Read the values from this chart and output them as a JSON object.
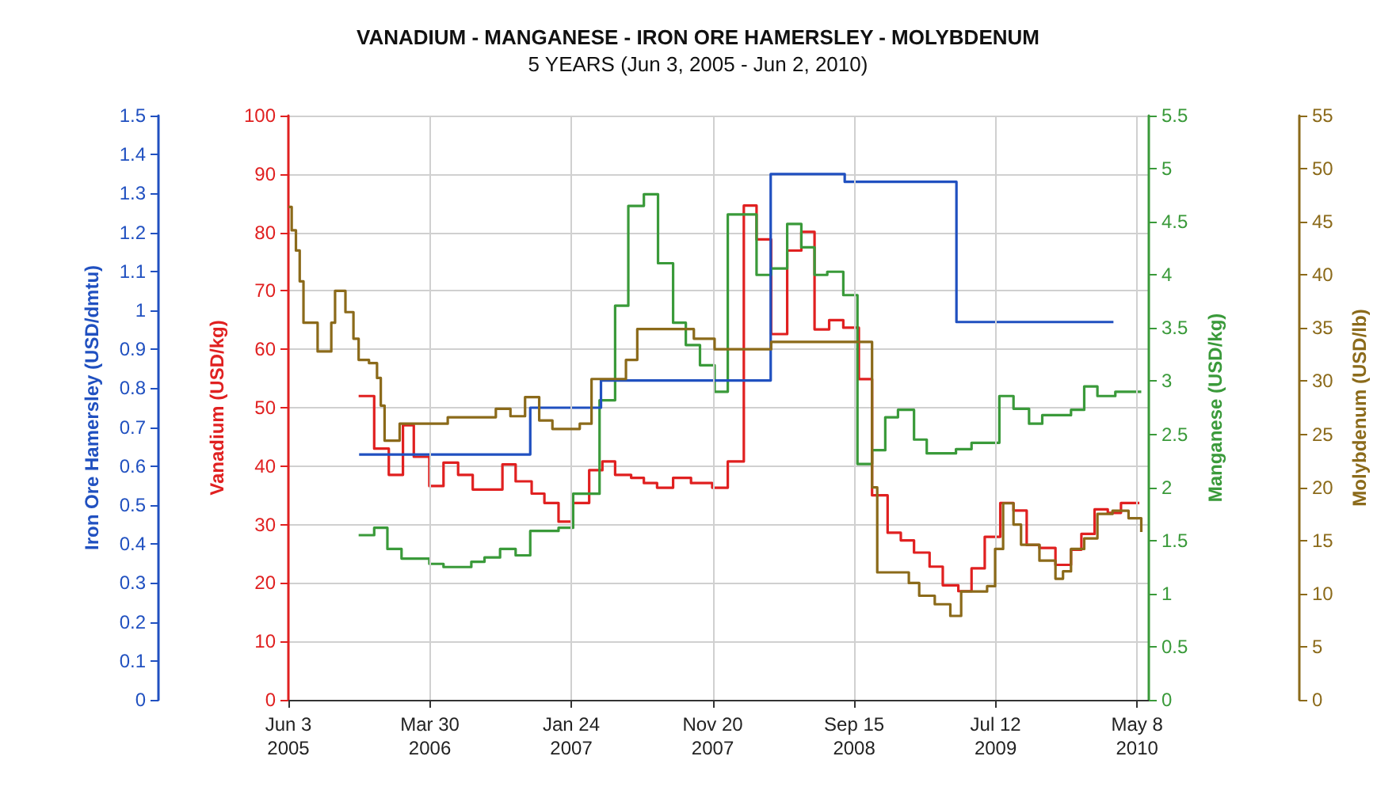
{
  "chart_data": [
    {
      "type": "step",
      "title": "VANADIUM - MANGANESE - IRON ORE HAMERSLEY - MOLYBDENUM",
      "subtitle": "5 YEARS (Jun 3, 2005 - Jun 2, 2010)",
      "ylabel": "Vanadium (USD/kg)",
      "y2label": "Manganese (USD/kg)",
      "y3label": "Iron Ore Hamersley (USD/dmtu)",
      "xlim": [
        "2005-06-03",
        "2010-06-02"
      ],
      "xticks": [
        {
          "value": "2005-06-03",
          "label": "Jun 3\n2005"
        },
        {
          "value": "2006-03-30",
          "label": "Mar 30\n2006"
        },
        {
          "value": "2007-01-24",
          "label": "Jan 24\n2007"
        },
        {
          "value": "2007-11-20",
          "label": "Nov 20\n2007"
        },
        {
          "value": "2008-09-15",
          "label": "Sep 15\n2008"
        },
        {
          "value": "2009-07-12",
          "label": "Jul 12\n2009"
        },
        {
          "value": "2010-05-08",
          "label": "May 8\n2010"
        }
      ],
      "ylim": [
        0,
        100
      ],
      "yticks": [
        0,
        10,
        20,
        30,
        40,
        50,
        60,
        70,
        80,
        90,
        100
      ],
      "y2lim": [
        0,
        5.5
      ],
      "y2ticks": [
        0,
        0.5,
        1,
        1.5,
        2,
        2.5,
        3,
        3.5,
        4,
        4.5,
        5,
        5.5
      ],
      "y3lim": [
        0,
        1.5
      ],
      "y3ticks": [
        0,
        0.1,
        0.2,
        0.3,
        0.4,
        0.5,
        0.6,
        0.7,
        0.8,
        0.9,
        1,
        1.1,
        1.2,
        1.3,
        1.4,
        1.5
      ],
      "grid": true,
      "series": [
        {
          "color": "#e02020",
          "axis": "y",
          "x": [
            "2005-10-30",
            "2005-12-02",
            "2006-01-02",
            "2006-02-01",
            "2006-02-24",
            "2006-03-29",
            "2006-04-28",
            "2006-05-29",
            "2006-06-29",
            "2006-08-31",
            "2006-09-28",
            "2006-11-01",
            "2006-11-28",
            "2006-12-28",
            "2007-01-28",
            "2007-03-03",
            "2007-03-31",
            "2007-04-27",
            "2007-05-31",
            "2007-06-27",
            "2007-07-25",
            "2007-08-28",
            "2007-10-05",
            "2007-11-19",
            "2007-12-22",
            "2008-01-25",
            "2008-02-21",
            "2008-03-23",
            "2008-04-26",
            "2008-05-26",
            "2008-06-23",
            "2008-07-24",
            "2008-08-23",
            "2008-09-25",
            "2008-10-23",
            "2008-11-25",
            "2008-12-23",
            "2009-01-20",
            "2009-02-22",
            "2009-03-22",
            "2009-04-24",
            "2009-05-22",
            "2009-06-19",
            "2009-07-22",
            "2009-08-19",
            "2009-09-16",
            "2009-10-13",
            "2009-11-16",
            "2009-12-19",
            "2010-01-10",
            "2010-02-07",
            "2010-03-07",
            "2010-04-04",
            "2010-05-13"
          ],
          "values": [
            52,
            43,
            38.5,
            47,
            41.6,
            36.6,
            40.6,
            38.5,
            36,
            40.3,
            37.4,
            35.3,
            33.7,
            30.5,
            33.7,
            39.3,
            40.8,
            38.5,
            38,
            37.1,
            36.3,
            38,
            37.1,
            36.3,
            40.8,
            84.6,
            78.8,
            62.6,
            76.9,
            80.1,
            63.4,
            65,
            63.7,
            54.9,
            35,
            28.6,
            27.3,
            25.2,
            22.8,
            19.6,
            18.6,
            22.5,
            27.9,
            33.7,
            32.4,
            26.5,
            26,
            23.1,
            25.7,
            28.4,
            32.6,
            32,
            33.7,
            33.7
          ]
        },
        {
          "color": "#3a9a3a",
          "axis": "y2",
          "x": [
            "2005-10-30",
            "2005-12-02",
            "2005-12-30",
            "2006-01-29",
            "2006-03-29",
            "2006-04-28",
            "2006-06-26",
            "2006-07-24",
            "2006-08-26",
            "2006-09-28",
            "2006-10-29",
            "2006-12-28",
            "2007-01-28",
            "2007-03-25",
            "2007-04-27",
            "2007-05-25",
            "2007-06-27",
            "2007-07-27",
            "2007-08-28",
            "2007-09-24",
            "2007-10-24",
            "2007-11-24",
            "2007-12-22",
            "2008-02-21",
            "2008-03-23",
            "2008-04-26",
            "2008-05-26",
            "2008-06-23",
            "2008-07-20",
            "2008-08-23",
            "2008-09-22",
            "2008-10-23",
            "2008-11-20",
            "2008-12-17",
            "2009-01-20",
            "2009-02-16",
            "2009-04-19",
            "2009-05-22",
            "2009-07-20",
            "2009-08-19",
            "2009-09-21",
            "2009-10-19",
            "2009-12-19",
            "2010-01-16",
            "2010-02-13",
            "2010-03-23",
            "2010-05-17"
          ],
          "values": [
            1.55,
            1.62,
            1.42,
            1.33,
            1.28,
            1.25,
            1.3,
            1.34,
            1.42,
            1.36,
            1.59,
            1.62,
            1.94,
            2.82,
            3.71,
            4.65,
            4.76,
            4.11,
            3.55,
            3.34,
            3.15,
            2.9,
            4.57,
            4,
            4.06,
            4.48,
            4.26,
            4,
            4.03,
            3.81,
            2.22,
            2.35,
            2.66,
            2.73,
            2.45,
            2.32,
            2.36,
            2.42,
            2.86,
            2.74,
            2.6,
            2.68,
            2.73,
            2.95,
            2.86,
            2.9,
            2.9
          ]
        },
        {
          "color": "#2050c0",
          "axis": "y3",
          "x": [
            "2005-10-31",
            "2006-10-29",
            "2007-03-28",
            "2008-03-22",
            "2008-08-26",
            "2009-04-20",
            "2010-03-19"
          ],
          "values": [
            0.63,
            0.75,
            0.82,
            1.35,
            1.33,
            0.97,
            0.97
          ]
        }
      ]
    },
    {
      "type": "step",
      "ylabel": "Molybdenum (USD/lb)",
      "xlim": [
        "2005-06-03",
        "2010-06-02"
      ],
      "ylim": [
        0,
        55
      ],
      "yticks": [
        0,
        5,
        10,
        15,
        20,
        25,
        30,
        35,
        40,
        45,
        50,
        55
      ],
      "tick_labels": "y",
      "series": [
        {
          "color": "#8b6a1a",
          "x": [
            "2005-06-03",
            "2005-06-10",
            "2005-06-19",
            "2005-06-27",
            "2005-07-05",
            "2005-08-04",
            "2005-09-02",
            "2005-09-10",
            "2005-10-02",
            "2005-10-19",
            "2005-10-30",
            "2005-11-21",
            "2005-12-08",
            "2005-12-16",
            "2005-12-24",
            "2006-01-25",
            "2006-05-07",
            "2006-08-17",
            "2006-09-17",
            "2006-10-18",
            "2006-11-17",
            "2006-12-15",
            "2007-02-11",
            "2007-03-08",
            "2007-05-20",
            "2007-06-13",
            "2007-10-11",
            "2007-11-24",
            "2008-03-23",
            "2008-10-23",
            "2008-11-03",
            "2009-01-09",
            "2009-01-31",
            "2009-03-05",
            "2009-04-07",
            "2009-04-30",
            "2009-06-24",
            "2009-07-11",
            "2009-07-28",
            "2009-08-19",
            "2009-09-04",
            "2009-10-13",
            "2009-11-16",
            "2009-12-02",
            "2009-12-19",
            "2010-01-16",
            "2010-02-13",
            "2010-03-17",
            "2010-04-20",
            "2010-05-17"
          ],
          "values": [
            46.4,
            44.2,
            42.3,
            39.4,
            35.5,
            32.8,
            35.5,
            38.5,
            36.5,
            34,
            32,
            31.7,
            30.3,
            27.7,
            24.4,
            26,
            26.6,
            27.4,
            26.7,
            28.5,
            26.3,
            25.5,
            26,
            30.2,
            32,
            34.9,
            34,
            33,
            33.7,
            20,
            12,
            11,
            9.8,
            9,
            7.9,
            10.2,
            10.7,
            14.2,
            18.5,
            16.5,
            14.6,
            13.1,
            11.4,
            12.1,
            14.2,
            15.2,
            17.5,
            17.8,
            17.1,
            15.8
          ]
        }
      ]
    }
  ]
}
